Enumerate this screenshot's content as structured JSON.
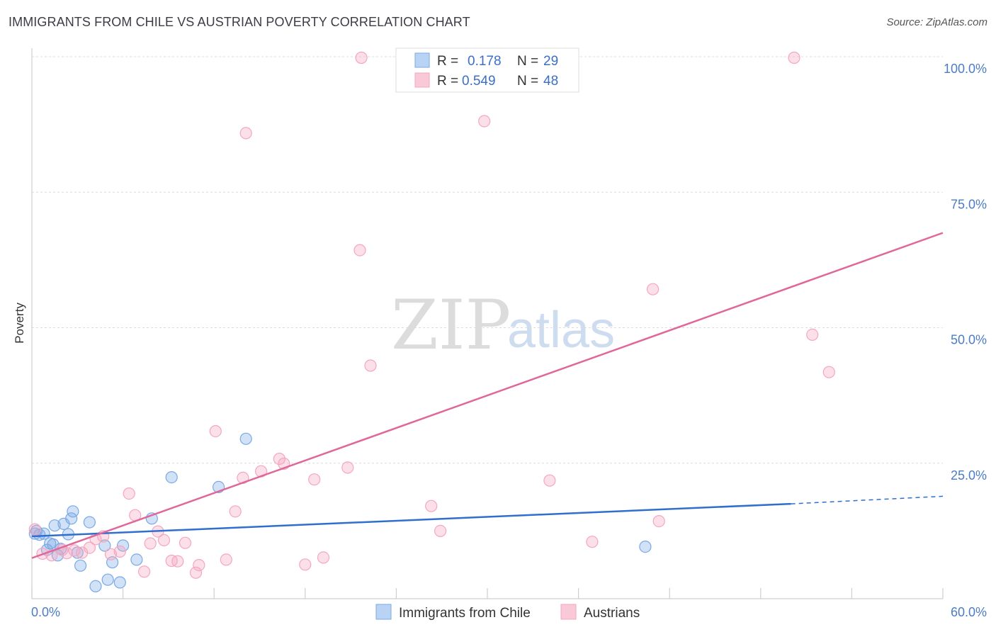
{
  "header": {
    "title": "IMMIGRANTS FROM CHILE VS AUSTRIAN POVERTY CORRELATION CHART",
    "source": "Source: ZipAtlas.com"
  },
  "watermark": {
    "zip": "ZIP",
    "atlas": "atlas"
  },
  "legend": {
    "r_label": "R =",
    "n_label": "N =",
    "rows": [
      {
        "r": "0.178",
        "n": "29"
      },
      {
        "r": "0.549",
        "n": "48"
      }
    ]
  },
  "chart_data": {
    "type": "scatter",
    "title": "IMMIGRANTS FROM CHILE VS AUSTRIAN POVERTY CORRELATION CHART",
    "xlabel": "",
    "ylabel": "Poverty",
    "xlim": [
      0,
      60
    ],
    "ylim": [
      0,
      100
    ],
    "x_ticks": [
      "0.0%",
      "60.0%"
    ],
    "y_ticks": [
      "100.0%",
      "75.0%",
      "50.0%",
      "25.0%"
    ],
    "y_tick_values": [
      100,
      75,
      50,
      25
    ],
    "grid": true,
    "legend_position": "top-center",
    "series": [
      {
        "name": "Immigrants from Chile",
        "color": "#7aa9e6",
        "line_color": "#2f6fce",
        "R": 0.178,
        "N": 29,
        "trend": {
          "x0": 0,
          "y0": 11.5,
          "x1": 50,
          "y1": 17.5,
          "dashed_to_x": 60,
          "dashed_to_y": 18.9
        },
        "points": [
          [
            0.3,
            12.5
          ],
          [
            0.5,
            11.8
          ],
          [
            0.8,
            12.0
          ],
          [
            1.0,
            9.0
          ],
          [
            1.2,
            10.2
          ],
          [
            1.4,
            10.0
          ],
          [
            1.5,
            13.5
          ],
          [
            1.7,
            8.0
          ],
          [
            1.9,
            9.2
          ],
          [
            2.1,
            13.8
          ],
          [
            2.4,
            11.9
          ],
          [
            2.6,
            14.8
          ],
          [
            2.7,
            16.1
          ],
          [
            3.0,
            8.5
          ],
          [
            3.2,
            6.1
          ],
          [
            3.8,
            14.1
          ],
          [
            4.2,
            2.3
          ],
          [
            4.8,
            9.8
          ],
          [
            5.0,
            3.5
          ],
          [
            5.3,
            6.7
          ],
          [
            5.8,
            3.0
          ],
          [
            6.0,
            9.8
          ],
          [
            6.9,
            7.2
          ],
          [
            7.9,
            14.8
          ],
          [
            9.2,
            22.4
          ],
          [
            12.3,
            20.6
          ],
          [
            14.1,
            29.5
          ],
          [
            40.4,
            9.6
          ],
          [
            0.2,
            12.0
          ]
        ]
      },
      {
        "name": "Austrians",
        "color": "#f4a6c0",
        "line_color": "#e0679a",
        "R": 0.549,
        "N": 48,
        "trend": {
          "x0": 0,
          "y0": 7.5,
          "x1": 60,
          "y1": 67.5
        },
        "points": [
          [
            0.2,
            12.8
          ],
          [
            0.7,
            8.3
          ],
          [
            1.3,
            8.0
          ],
          [
            2.0,
            9.0
          ],
          [
            2.3,
            8.4
          ],
          [
            2.8,
            8.9
          ],
          [
            3.3,
            8.5
          ],
          [
            3.8,
            9.4
          ],
          [
            4.2,
            11.0
          ],
          [
            4.7,
            11.5
          ],
          [
            5.2,
            8.2
          ],
          [
            5.8,
            8.7
          ],
          [
            6.4,
            19.4
          ],
          [
            6.8,
            15.4
          ],
          [
            7.4,
            5.0
          ],
          [
            7.8,
            10.2
          ],
          [
            8.3,
            12.4
          ],
          [
            8.7,
            10.8
          ],
          [
            9.2,
            7.0
          ],
          [
            9.6,
            6.9
          ],
          [
            10.1,
            10.3
          ],
          [
            10.8,
            4.8
          ],
          [
            11.0,
            6.2
          ],
          [
            12.1,
            30.9
          ],
          [
            12.8,
            7.2
          ],
          [
            13.4,
            16.1
          ],
          [
            13.9,
            22.3
          ],
          [
            14.1,
            85.9
          ],
          [
            15.1,
            23.5
          ],
          [
            16.3,
            25.8
          ],
          [
            16.6,
            24.9
          ],
          [
            18.0,
            6.3
          ],
          [
            18.6,
            22.0
          ],
          [
            19.2,
            7.6
          ],
          [
            20.8,
            24.2
          ],
          [
            21.6,
            64.3
          ],
          [
            21.7,
            99.8
          ],
          [
            22.3,
            43.0
          ],
          [
            26.3,
            17.1
          ],
          [
            26.9,
            12.5
          ],
          [
            29.8,
            88.1
          ],
          [
            34.1,
            21.8
          ],
          [
            36.9,
            10.5
          ],
          [
            40.9,
            57.1
          ],
          [
            41.3,
            14.3
          ],
          [
            50.2,
            99.8
          ],
          [
            51.4,
            48.7
          ],
          [
            52.5,
            41.8
          ]
        ]
      }
    ]
  }
}
